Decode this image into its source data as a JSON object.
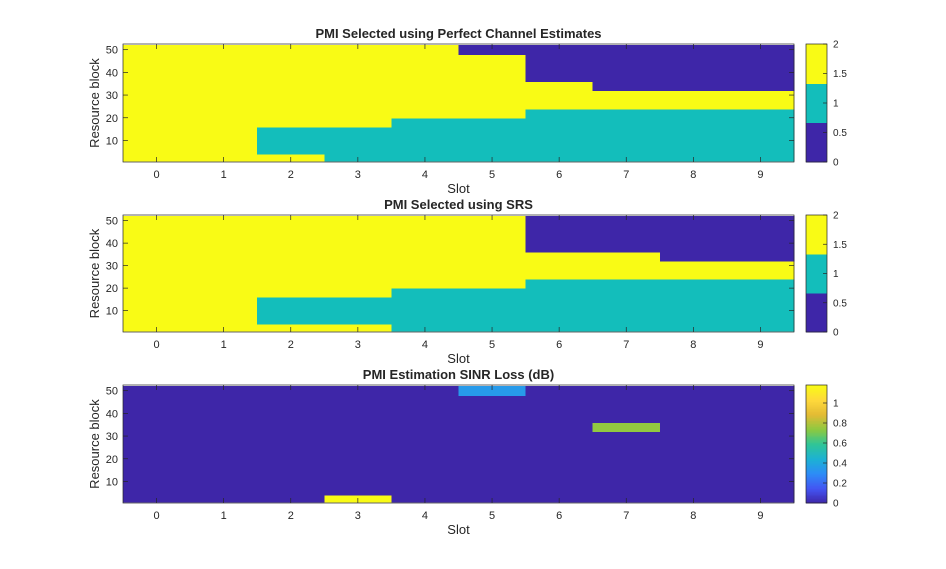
{
  "figure_title": "",
  "chart_data": [
    {
      "type": "heatmap",
      "title": "PMI Selected using Perfect Channel Estimates",
      "xlabel": "Slot",
      "ylabel": "Resource block",
      "x_ticks": [
        "0",
        "1",
        "2",
        "3",
        "4",
        "5",
        "6",
        "7",
        "8",
        "9"
      ],
      "y_ticks": [
        "10",
        "20",
        "30",
        "40",
        "50"
      ],
      "x_range": [
        -0.5,
        9.5
      ],
      "y_range": [
        0.5,
        52.5
      ],
      "colorbar": {
        "type": "discrete",
        "levels": 3,
        "ticks": [
          "0",
          "0.5",
          "1",
          "1.5",
          "2"
        ],
        "range": [
          0,
          2
        ],
        "colors": [
          "#3e26a8",
          "#13bebb",
          "#f9fb15"
        ]
      },
      "columns": [
        {
          "slot": 0,
          "segments": [
            {
              "from": 1,
              "to": 52,
              "value": 2
            }
          ]
        },
        {
          "slot": 1,
          "segments": [
            {
              "from": 1,
              "to": 52,
              "value": 2
            }
          ]
        },
        {
          "slot": 2,
          "segments": [
            {
              "from": 1,
              "to": 4,
              "value": 2
            },
            {
              "from": 4,
              "to": 16,
              "value": 1
            },
            {
              "from": 16,
              "to": 52,
              "value": 2
            }
          ]
        },
        {
          "slot": 3,
          "segments": [
            {
              "from": 1,
              "to": 16,
              "value": 1
            },
            {
              "from": 16,
              "to": 52,
              "value": 2
            }
          ]
        },
        {
          "slot": 4,
          "segments": [
            {
              "from": 1,
              "to": 20,
              "value": 1
            },
            {
              "from": 20,
              "to": 52,
              "value": 2
            }
          ]
        },
        {
          "slot": 5,
          "segments": [
            {
              "from": 1,
              "to": 20,
              "value": 1
            },
            {
              "from": 20,
              "to": 48,
              "value": 2
            },
            {
              "from": 48,
              "to": 52,
              "value": 0
            }
          ]
        },
        {
          "slot": 6,
          "segments": [
            {
              "from": 1,
              "to": 24,
              "value": 1
            },
            {
              "from": 24,
              "to": 36,
              "value": 2
            },
            {
              "from": 36,
              "to": 52,
              "value": 0
            }
          ]
        },
        {
          "slot": 7,
          "segments": [
            {
              "from": 1,
              "to": 24,
              "value": 1
            },
            {
              "from": 24,
              "to": 32,
              "value": 2
            },
            {
              "from": 32,
              "to": 52,
              "value": 0
            }
          ]
        },
        {
          "slot": 8,
          "segments": [
            {
              "from": 1,
              "to": 24,
              "value": 1
            },
            {
              "from": 24,
              "to": 32,
              "value": 2
            },
            {
              "from": 32,
              "to": 52,
              "value": 0
            }
          ]
        },
        {
          "slot": 9,
          "segments": [
            {
              "from": 1,
              "to": 24,
              "value": 1
            },
            {
              "from": 24,
              "to": 32,
              "value": 2
            },
            {
              "from": 32,
              "to": 52,
              "value": 0
            }
          ]
        }
      ]
    },
    {
      "type": "heatmap",
      "title": "PMI Selected using SRS",
      "xlabel": "Slot",
      "ylabel": "Resource block",
      "x_ticks": [
        "0",
        "1",
        "2",
        "3",
        "4",
        "5",
        "6",
        "7",
        "8",
        "9"
      ],
      "y_ticks": [
        "10",
        "20",
        "30",
        "40",
        "50"
      ],
      "x_range": [
        -0.5,
        9.5
      ],
      "y_range": [
        0.5,
        52.5
      ],
      "colorbar": {
        "type": "discrete",
        "levels": 3,
        "ticks": [
          "0",
          "0.5",
          "1",
          "1.5",
          "2"
        ],
        "range": [
          0,
          2
        ],
        "colors": [
          "#3e26a8",
          "#13bebb",
          "#f9fb15"
        ]
      },
      "columns": [
        {
          "slot": 0,
          "segments": [
            {
              "from": 1,
              "to": 52,
              "value": 2
            }
          ]
        },
        {
          "slot": 1,
          "segments": [
            {
              "from": 1,
              "to": 52,
              "value": 2
            }
          ]
        },
        {
          "slot": 2,
          "segments": [
            {
              "from": 1,
              "to": 4,
              "value": 2
            },
            {
              "from": 4,
              "to": 16,
              "value": 1
            },
            {
              "from": 16,
              "to": 52,
              "value": 2
            }
          ]
        },
        {
          "slot": 3,
          "segments": [
            {
              "from": 1,
              "to": 4,
              "value": 2
            },
            {
              "from": 4,
              "to": 16,
              "value": 1
            },
            {
              "from": 16,
              "to": 52,
              "value": 2
            }
          ]
        },
        {
          "slot": 4,
          "segments": [
            {
              "from": 1,
              "to": 20,
              "value": 1
            },
            {
              "from": 20,
              "to": 52,
              "value": 2
            }
          ]
        },
        {
          "slot": 5,
          "segments": [
            {
              "from": 1,
              "to": 20,
              "value": 1
            },
            {
              "from": 20,
              "to": 52,
              "value": 2
            }
          ]
        },
        {
          "slot": 6,
          "segments": [
            {
              "from": 1,
              "to": 24,
              "value": 1
            },
            {
              "from": 24,
              "to": 36,
              "value": 2
            },
            {
              "from": 36,
              "to": 52,
              "value": 0
            }
          ]
        },
        {
          "slot": 7,
          "segments": [
            {
              "from": 1,
              "to": 24,
              "value": 1
            },
            {
              "from": 24,
              "to": 36,
              "value": 2
            },
            {
              "from": 36,
              "to": 52,
              "value": 0
            }
          ]
        },
        {
          "slot": 8,
          "segments": [
            {
              "from": 1,
              "to": 24,
              "value": 1
            },
            {
              "from": 24,
              "to": 32,
              "value": 2
            },
            {
              "from": 32,
              "to": 52,
              "value": 0
            }
          ]
        },
        {
          "slot": 9,
          "segments": [
            {
              "from": 1,
              "to": 24,
              "value": 1
            },
            {
              "from": 24,
              "to": 32,
              "value": 2
            },
            {
              "from": 32,
              "to": 52,
              "value": 0
            }
          ]
        }
      ]
    },
    {
      "type": "heatmap",
      "title": "PMI Estimation SINR Loss (dB)",
      "xlabel": "Slot",
      "ylabel": "Resource block",
      "x_ticks": [
        "0",
        "1",
        "2",
        "3",
        "4",
        "5",
        "6",
        "7",
        "8",
        "9"
      ],
      "y_ticks": [
        "10",
        "20",
        "30",
        "40",
        "50"
      ],
      "x_range": [
        -0.5,
        9.5
      ],
      "y_range": [
        0.5,
        52.5
      ],
      "colorbar": {
        "type": "continuous",
        "ticks": [
          "0",
          "0.2",
          "0.4",
          "0.6",
          "0.8",
          "1"
        ],
        "range": [
          0,
          1.18
        ],
        "stops": [
          "#3e26a8",
          "#4354f2",
          "#2d8cf7",
          "#1cb1d4",
          "#2fc597",
          "#8bc941",
          "#e3bb34",
          "#fed83b",
          "#f9fb15"
        ]
      },
      "columns": [
        {
          "slot": 0,
          "segments": [
            {
              "from": 1,
              "to": 52,
              "value": 0
            }
          ]
        },
        {
          "slot": 1,
          "segments": [
            {
              "from": 1,
              "to": 52,
              "value": 0
            }
          ]
        },
        {
          "slot": 2,
          "segments": [
            {
              "from": 1,
              "to": 52,
              "value": 0
            }
          ]
        },
        {
          "slot": 3,
          "segments": [
            {
              "from": 1,
              "to": 4,
              "value": 1.18
            },
            {
              "from": 4,
              "to": 52,
              "value": 0
            }
          ]
        },
        {
          "slot": 4,
          "segments": [
            {
              "from": 1,
              "to": 52,
              "value": 0
            }
          ]
        },
        {
          "slot": 5,
          "segments": [
            {
              "from": 1,
              "to": 48,
              "value": 0
            },
            {
              "from": 48,
              "to": 52,
              "value": 0.35
            }
          ]
        },
        {
          "slot": 6,
          "segments": [
            {
              "from": 1,
              "to": 52,
              "value": 0
            }
          ]
        },
        {
          "slot": 7,
          "segments": [
            {
              "from": 1,
              "to": 32,
              "value": 0
            },
            {
              "from": 32,
              "to": 36,
              "value": 0.75
            },
            {
              "from": 36,
              "to": 52,
              "value": 0
            }
          ]
        },
        {
          "slot": 8,
          "segments": [
            {
              "from": 1,
              "to": 52,
              "value": 0
            }
          ]
        },
        {
          "slot": 9,
          "segments": [
            {
              "from": 1,
              "to": 52,
              "value": 0
            }
          ]
        }
      ]
    }
  ]
}
